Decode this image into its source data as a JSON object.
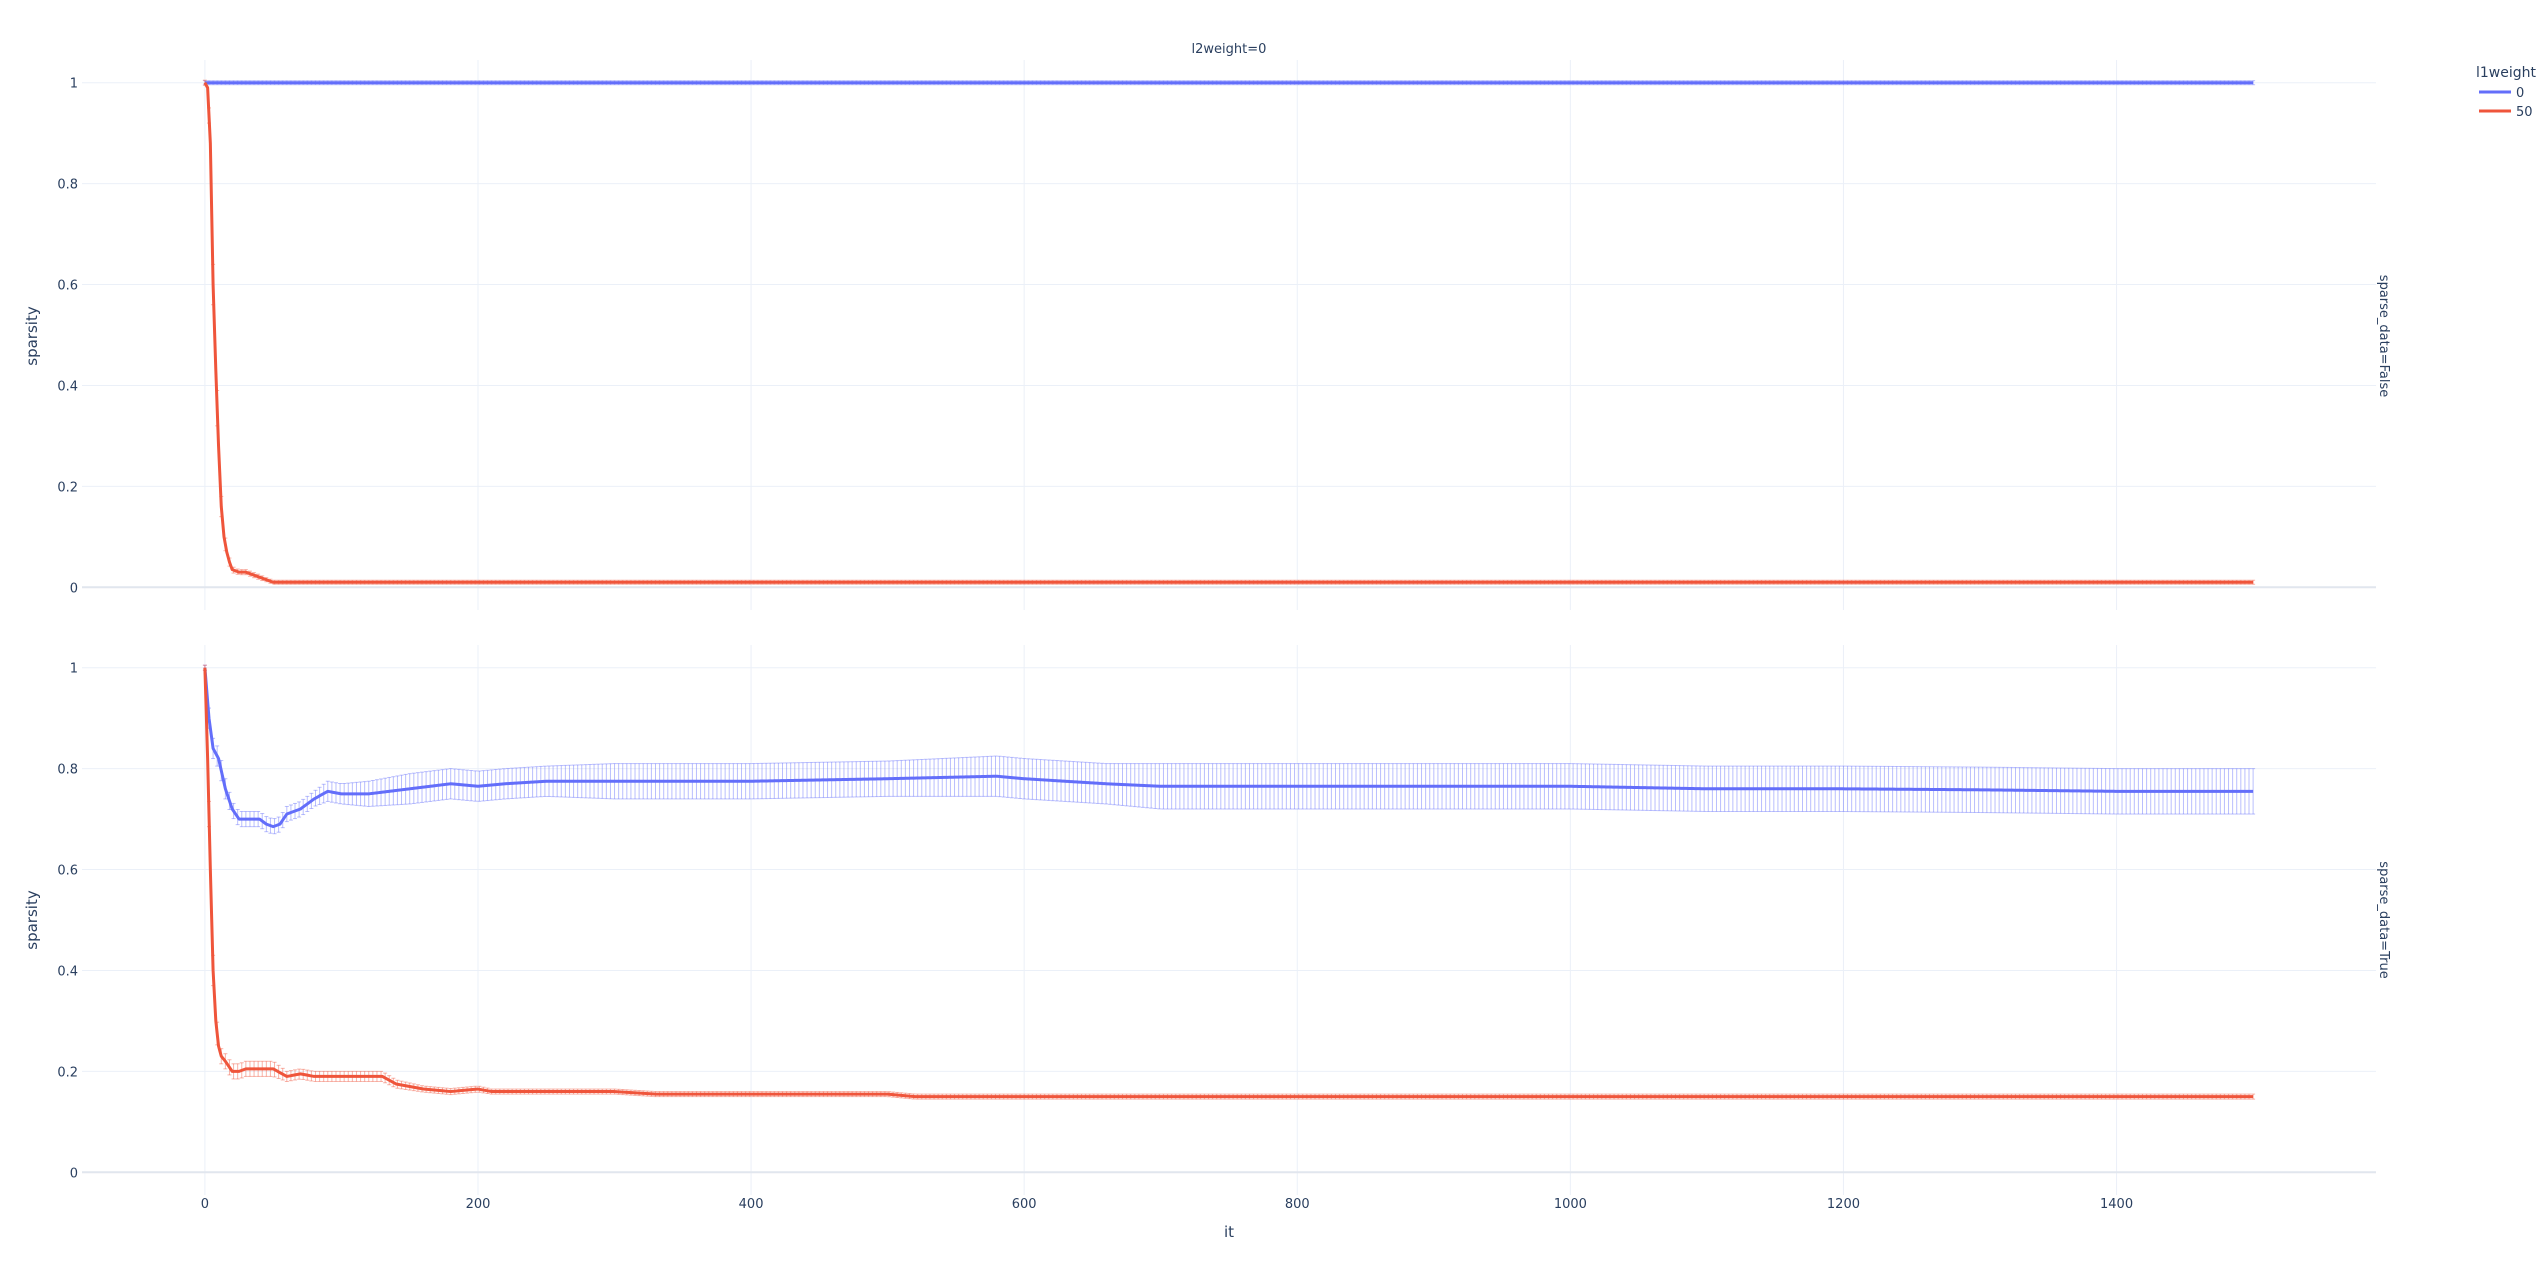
{
  "colors": {
    "l1_0": "#636efa",
    "l1_50": "#ef553b",
    "grid": "#ebf0f8",
    "text": "#2a3f5f"
  },
  "chart_data": {
    "type": "line",
    "column_facet_title": "l2weight=0",
    "xlabel": "it",
    "ylabel": "sparsity",
    "xlim": [
      -90,
      1590
    ],
    "x_ticks": [
      0,
      200,
      400,
      600,
      800,
      1000,
      1200,
      1400
    ],
    "y_ticks": [
      0,
      0.2,
      0.4,
      0.6,
      0.8,
      1
    ],
    "legend": {
      "title": "l1weight",
      "entries": [
        "0",
        "50"
      ],
      "placement": "top-right"
    },
    "grid": true,
    "error_bars": true,
    "panels": [
      {
        "facet_label": "sparse_data=False",
        "ylim": [
          -0.045,
          1.045
        ],
        "series": [
          {
            "name": "0",
            "x": [
              0,
              1500
            ],
            "y": [
              1.0,
              1.0
            ],
            "err": [
              0.004,
              0.004
            ]
          },
          {
            "name": "50",
            "x": [
              0,
              2,
              4,
              6,
              8,
              10,
              12,
              14,
              16,
              18,
              20,
              25,
              30,
              35,
              40,
              45,
              50,
              60,
              80,
              100,
              150,
              300,
              600,
              1000,
              1500
            ],
            "y": [
              1.0,
              0.99,
              0.88,
              0.6,
              0.43,
              0.28,
              0.16,
              0.1,
              0.07,
              0.05,
              0.035,
              0.03,
              0.03,
              0.025,
              0.02,
              0.015,
              0.01,
              0.01,
              0.01,
              0.01,
              0.01,
              0.01,
              0.01,
              0.01,
              0.01
            ],
            "err": [
              0.005,
              0.01,
              0.02,
              0.04,
              0.04,
              0.03,
              0.02,
              0.015,
              0.01,
              0.008,
              0.006,
              0.005,
              0.005,
              0.005,
              0.005,
              0.004,
              0.004,
              0.004,
              0.004,
              0.004,
              0.004,
              0.004,
              0.004,
              0.004,
              0.004
            ]
          }
        ]
      },
      {
        "facet_label": "sparse_data=True",
        "ylim": [
          -0.045,
          1.045
        ],
        "series": [
          {
            "name": "0",
            "x": [
              0,
              3,
              6,
              10,
              15,
              20,
              25,
              30,
              35,
              40,
              45,
              50,
              55,
              60,
              70,
              80,
              90,
              100,
              120,
              150,
              180,
              200,
              220,
              250,
              300,
              350,
              400,
              500,
              580,
              600,
              660,
              700,
              800,
              900,
              1000,
              1100,
              1200,
              1300,
              1400,
              1500
            ],
            "y": [
              1.0,
              0.9,
              0.84,
              0.82,
              0.76,
              0.72,
              0.7,
              0.7,
              0.7,
              0.7,
              0.69,
              0.685,
              0.69,
              0.71,
              0.72,
              0.74,
              0.755,
              0.75,
              0.75,
              0.76,
              0.77,
              0.765,
              0.77,
              0.775,
              0.775,
              0.775,
              0.775,
              0.78,
              0.785,
              0.78,
              0.77,
              0.765,
              0.765,
              0.765,
              0.765,
              0.76,
              0.76,
              0.758,
              0.755,
              0.755
            ],
            "err": [
              0.005,
              0.02,
              0.02,
              0.02,
              0.02,
              0.015,
              0.015,
              0.015,
              0.015,
              0.015,
              0.015,
              0.015,
              0.015,
              0.015,
              0.015,
              0.015,
              0.02,
              0.02,
              0.025,
              0.03,
              0.03,
              0.03,
              0.03,
              0.03,
              0.035,
              0.035,
              0.035,
              0.035,
              0.04,
              0.04,
              0.04,
              0.045,
              0.045,
              0.045,
              0.045,
              0.045,
              0.045,
              0.045,
              0.045,
              0.045
            ]
          },
          {
            "name": "50",
            "x": [
              0,
              2,
              4,
              6,
              8,
              10,
              12,
              15,
              20,
              25,
              30,
              40,
              50,
              60,
              70,
              80,
              100,
              130,
              140,
              160,
              180,
              200,
              210,
              300,
              330,
              400,
              500,
              520,
              800,
              1000,
              1500
            ],
            "y": [
              1.0,
              0.82,
              0.6,
              0.4,
              0.3,
              0.25,
              0.23,
              0.22,
              0.2,
              0.2,
              0.205,
              0.205,
              0.205,
              0.19,
              0.195,
              0.19,
              0.19,
              0.19,
              0.175,
              0.165,
              0.16,
              0.165,
              0.16,
              0.16,
              0.155,
              0.155,
              0.155,
              0.15,
              0.15,
              0.15,
              0.15
            ],
            "err": [
              0.005,
              0.02,
              0.03,
              0.03,
              0.025,
              0.02,
              0.015,
              0.015,
              0.015,
              0.015,
              0.015,
              0.015,
              0.015,
              0.01,
              0.01,
              0.01,
              0.01,
              0.01,
              0.008,
              0.006,
              0.006,
              0.006,
              0.005,
              0.005,
              0.005,
              0.005,
              0.005,
              0.005,
              0.005,
              0.005,
              0.005
            ]
          }
        ]
      }
    ]
  }
}
